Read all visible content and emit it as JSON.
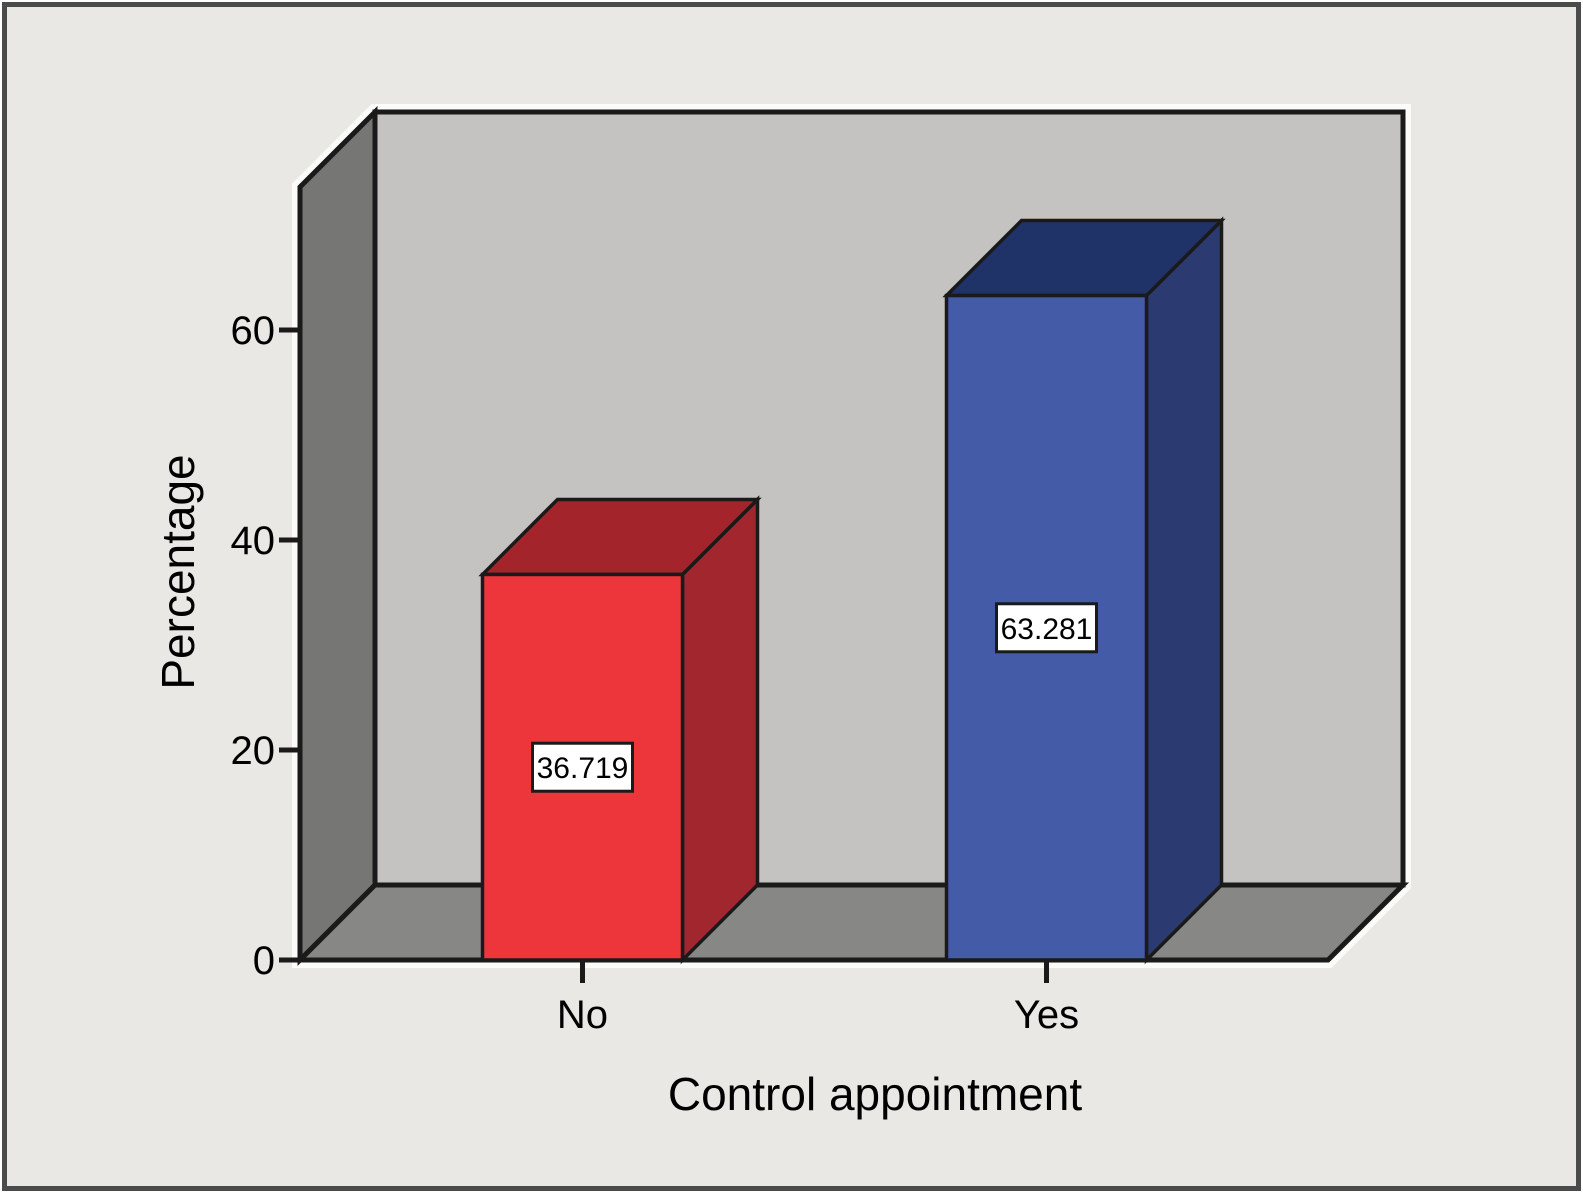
{
  "chart_data": {
    "type": "bar",
    "style": "spss-3d-column",
    "title": "",
    "xlabel": "Control appointment",
    "ylabel": "Percentage",
    "categories": [
      "No",
      "Yes"
    ],
    "values": [
      36.719,
      63.281
    ],
    "yticks": [
      0,
      20,
      40,
      60
    ],
    "ytick_labels": [
      "0",
      "20",
      "40",
      "60"
    ],
    "ylim": [
      0,
      73.6
    ],
    "grid": "off",
    "legend": "none",
    "bars": [
      {
        "category": "No",
        "value": 36.719,
        "label": "36.719",
        "face_color": "#ec363c",
        "top_color": "#a4242b",
        "side_color": "#a2262d"
      },
      {
        "category": "Yes",
        "value": 63.281,
        "label": "63.281",
        "face_color": "#445ba7",
        "top_color": "#203368",
        "side_color": "#2b3b72"
      }
    ]
  },
  "colors": {
    "canvas_bg": "#e9e8e5",
    "frame_border": "#4b4b4b",
    "back_wall": "#c4c3c1",
    "left_wall": "#767674",
    "floor": "#878785",
    "edge": "#1a1a1a",
    "halo": "#fbfbf9",
    "label_box_bg": "#ffffff",
    "text": "#000000"
  }
}
